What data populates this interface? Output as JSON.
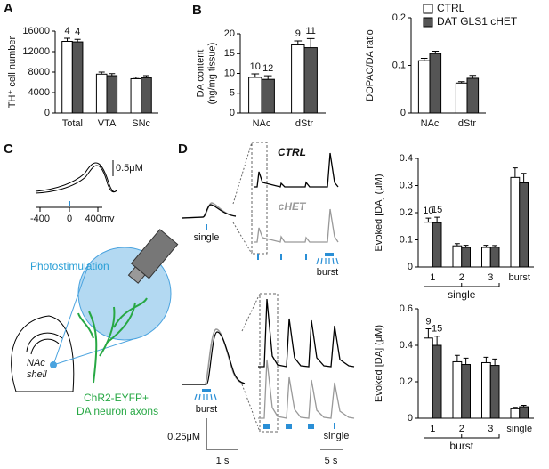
{
  "panels": [
    "A",
    "B",
    "C",
    "D"
  ],
  "trace_labels": {
    "voltage_scale": "0.5μM",
    "x_ticks": [
      "-400",
      "0",
      "400mv"
    ],
    "ctrl": "CTRL",
    "chet": "cHET",
    "single_top": "single",
    "burst_top": "burst",
    "burst_bottom": "burst",
    "single_bottom": "single",
    "amp_scale": "0.25μM",
    "time_short": "1 s",
    "time_long": "5 s"
  },
  "schematic": {
    "title": "Photostimulation",
    "region": [
      "NAc",
      "shell"
    ],
    "axons": [
      "ChR2-EYFP+",
      "DA neuron axons"
    ]
  },
  "chart_data": [
    {
      "type": "bar",
      "ylabel": [
        "TH⁺ cell number"
      ],
      "categories": [
        "Total",
        "VTA",
        "SNc"
      ],
      "ylim": [
        0,
        16000
      ],
      "yticks": [
        0,
        4000,
        8000,
        12000,
        16000
      ],
      "series": [
        {
          "name": "CTRL",
          "color": "#ffffff",
          "values": [
            14000,
            7600,
            6700
          ],
          "errors": [
            600,
            400,
            300
          ],
          "n": [
            4,
            null,
            null
          ]
        },
        {
          "name": "DAT GLS1 cHET",
          "color": "#555555",
          "values": [
            13900,
            7300,
            6900
          ],
          "errors": [
            500,
            400,
            400
          ],
          "n": [
            4,
            null,
            null
          ]
        }
      ]
    },
    {
      "type": "bar",
      "ylabel": [
        "DA content",
        "(ng/mg tissue)"
      ],
      "categories": [
        "NAc",
        "dStr"
      ],
      "ylim": [
        0,
        20
      ],
      "yticks": [
        0,
        5,
        10,
        15,
        20
      ],
      "series": [
        {
          "name": "CTRL",
          "color": "#ffffff",
          "values": [
            9,
            17.2
          ],
          "errors": [
            0.9,
            1
          ],
          "n": [
            10,
            9
          ]
        },
        {
          "name": "DAT GLS1 cHET",
          "color": "#555555",
          "values": [
            8.5,
            16.5
          ],
          "errors": [
            0.9,
            2.3
          ],
          "n": [
            12,
            11
          ]
        }
      ]
    },
    {
      "type": "bar",
      "ylabel": [
        "DOPAC/DA ratio"
      ],
      "categories": [
        "NAc",
        "dStr"
      ],
      "legend": "top-right",
      "ylim": [
        0,
        0.2
      ],
      "yticks": [
        0,
        0.1,
        0.2
      ],
      "series": [
        {
          "name": "CTRL",
          "color": "#ffffff",
          "values": [
            0.11,
            0.063
          ],
          "errors": [
            0.005,
            0.003
          ]
        },
        {
          "name": "DAT GLS1 cHET",
          "color": "#555555",
          "values": [
            0.125,
            0.073
          ],
          "errors": [
            0.005,
            0.006
          ]
        }
      ]
    },
    {
      "type": "bar",
      "ylabel": [
        "Evoked [DA] (μM)"
      ],
      "categories": [
        "1",
        "2",
        "3",
        "burst"
      ],
      "group_label": "single",
      "ylim": [
        0,
        0.4
      ],
      "yticks": [
        0,
        0.1,
        0.2,
        0.3,
        0.4
      ],
      "series": [
        {
          "name": "CTRL",
          "color": "#ffffff",
          "values": [
            0.165,
            0.078,
            0.072,
            0.33
          ],
          "errors": [
            0.015,
            0.008,
            0.008,
            0.035
          ],
          "n": [
            10,
            null,
            null,
            null
          ]
        },
        {
          "name": "DAT GLS1 cHET",
          "color": "#555555",
          "values": [
            0.163,
            0.072,
            0.073,
            0.31
          ],
          "errors": [
            0.02,
            0.008,
            0.006,
            0.035
          ],
          "n": [
            15,
            null,
            null,
            null
          ]
        }
      ]
    },
    {
      "type": "bar",
      "ylabel": [
        "Evoked [DA] (μM)"
      ],
      "categories": [
        "1",
        "2",
        "3",
        "single"
      ],
      "group_label": "burst",
      "ylim": [
        0,
        0.6
      ],
      "yticks": [
        0,
        0.2,
        0.4,
        0.6
      ],
      "series": [
        {
          "name": "CTRL",
          "color": "#ffffff",
          "values": [
            0.44,
            0.31,
            0.305,
            0.052
          ],
          "errors": [
            0.05,
            0.035,
            0.03,
            0.008
          ],
          "n": [
            9,
            null,
            null,
            null
          ]
        },
        {
          "name": "DAT GLS1 cHET",
          "color": "#555555",
          "values": [
            0.4,
            0.295,
            0.29,
            0.063
          ],
          "errors": [
            0.05,
            0.035,
            0.035,
            0.008
          ],
          "n": [
            15,
            null,
            null,
            null
          ]
        }
      ]
    }
  ]
}
